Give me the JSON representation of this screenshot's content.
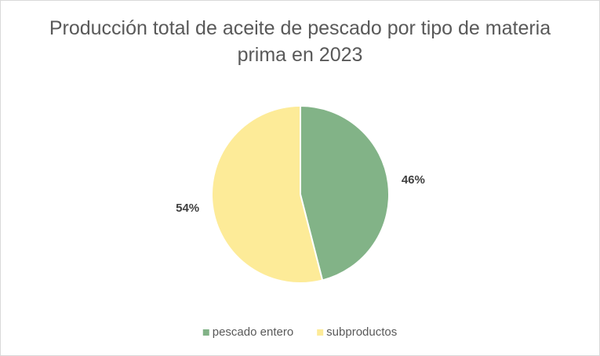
{
  "chart_data": {
    "type": "pie",
    "title": "Producción total de aceite de pescado por tipo de materia prima en 2023",
    "categories": [
      "pescado entero",
      "subproductos"
    ],
    "values": [
      46,
      54
    ],
    "value_labels": [
      "46%",
      "54%"
    ],
    "colors": [
      "#82b387",
      "#fdeb98"
    ],
    "legend": "bottom"
  }
}
